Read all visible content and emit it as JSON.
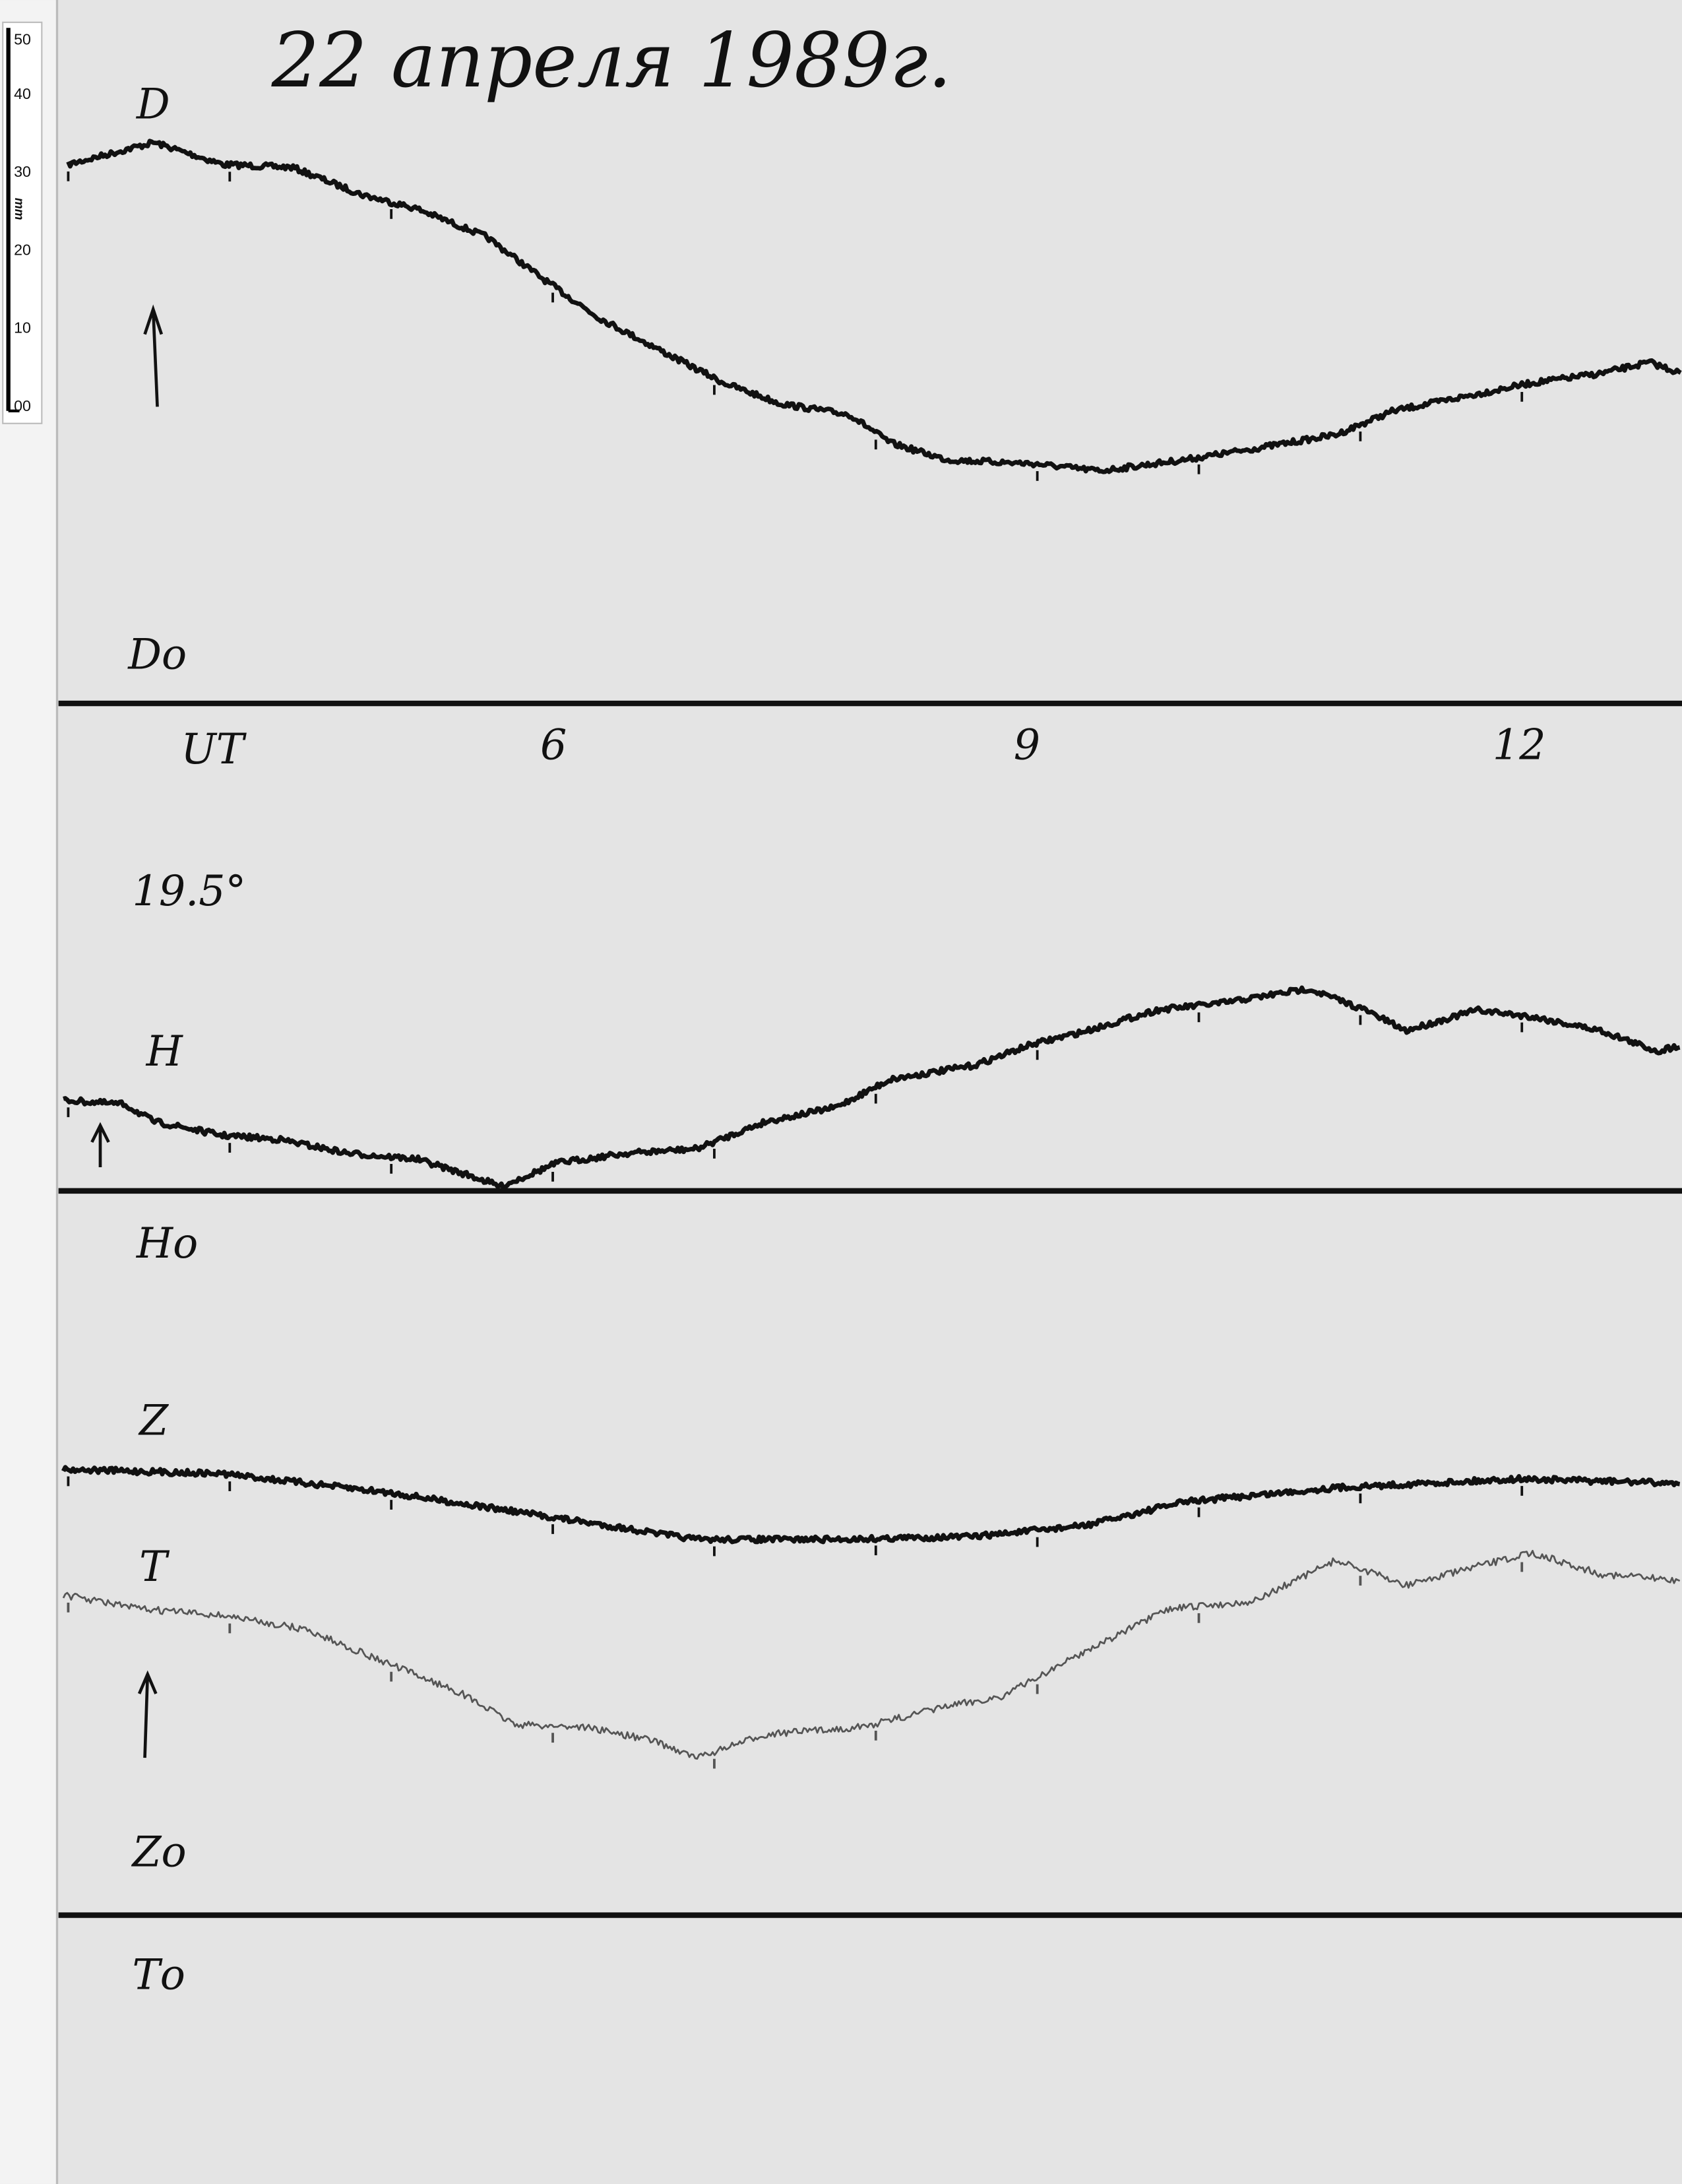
{
  "title": "22 апреля 1989г.",
  "ruler": {
    "unit": "mm",
    "labels": [
      "50",
      "40",
      "30",
      "20",
      "10",
      "00"
    ]
  },
  "colors": {
    "paper": "#e4e4e4",
    "trace": "#111111",
    "trace_T": "#555555",
    "margin": "#f4f4f4"
  },
  "chart_data": {
    "type": "line",
    "title": "22 апреля 1989г.",
    "xlabel": "UT",
    "x_ticks": [
      "6",
      "9",
      "12"
    ],
    "x_tick_values": [
      6,
      9,
      12
    ],
    "xlim": [
      3,
      13
    ],
    "grid": false,
    "panels": [
      {
        "baseline_label": "Dо",
        "series": [
          {
            "name": "D",
            "x": [
              3.0,
              3.53,
              3.96,
              4.39,
              4.82,
              5.16,
              5.59,
              5.94,
              6.28,
              6.72,
              7.06,
              7.41,
              7.84,
              8.09,
              8.44,
              8.96,
              9.39,
              9.91,
              10.34,
              10.85,
              11.2,
              11.63,
              12.06,
              12.49,
              12.79,
              12.99
            ],
            "y": [
              73.0,
              76.0,
              73.0,
              72.6,
              68.9,
              67.0,
              63.2,
              57.5,
              52.3,
              47.2,
              43.4,
              40.6,
              39.1,
              35.3,
              33.0,
              32.5,
              31.5,
              33.0,
              34.5,
              36.4,
              39.6,
              41.5,
              43.4,
              44.7,
              46.2,
              44.7
            ]
          }
        ]
      },
      {
        "scale_label": "19.5°",
        "baseline_label": "Hо",
        "series": [
          {
            "name": "H",
            "x": [
              2.97,
              3.35,
              3.53,
              3.96,
              4.3,
              4.73,
              5.16,
              5.51,
              5.68,
              6.03,
              6.46,
              6.89,
              7.32,
              7.75,
              8.09,
              8.61,
              8.96,
              9.31,
              9.74,
              10.16,
              10.68,
              11.03,
              11.28,
              11.72,
              12.06,
              12.49,
              12.84,
              12.99
            ],
            "y": [
              12.3,
              11.7,
              9.4,
              7.5,
              7.0,
              5.1,
              4.3,
              1.9,
              0.6,
              3.8,
              5.1,
              5.7,
              9.4,
              11.3,
              15.1,
              17.0,
              19.8,
              21.7,
              24.5,
              25.5,
              27.4,
              24.5,
              21.7,
              24.5,
              23.6,
              21.7,
              18.9,
              19.8
            ]
          }
        ]
      },
      {
        "baseline_labels": [
          "Zо",
          "Tо"
        ],
        "series": [
          {
            "name": "Z",
            "x": [
              2.97,
              3.96,
              5.0,
              6.03,
              6.89,
              7.75,
              8.61,
              9.3,
              9.91,
              10.85,
              11.97,
              12.99
            ],
            "y": [
              60.4,
              59.8,
              57.2,
              53.8,
              50.9,
              50.9,
              51.3,
              52.8,
              56.0,
              57.9,
              59.1,
              58.5
            ]
          },
          {
            "name": "T",
            "x": [
              2.97,
              3.44,
              3.96,
              4.47,
              4.99,
              5.42,
              5.77,
              6.2,
              6.63,
              6.89,
              7.32,
              7.92,
              8.44,
              8.78,
              9.3,
              9.82,
              10.34,
              10.85,
              11.28,
              11.72,
              12.06,
              12.49,
              12.99
            ],
            "y": [
              43.4,
              41.5,
              40.6,
              38.7,
              34.0,
              30.2,
              25.8,
              25.5,
              23.6,
              21.3,
              24.5,
              25.5,
              28.3,
              29.6,
              35.8,
              41.5,
              42.5,
              48.1,
              44.7,
              47.2,
              49.1,
              46.2,
              45.3
            ]
          }
        ]
      }
    ]
  }
}
